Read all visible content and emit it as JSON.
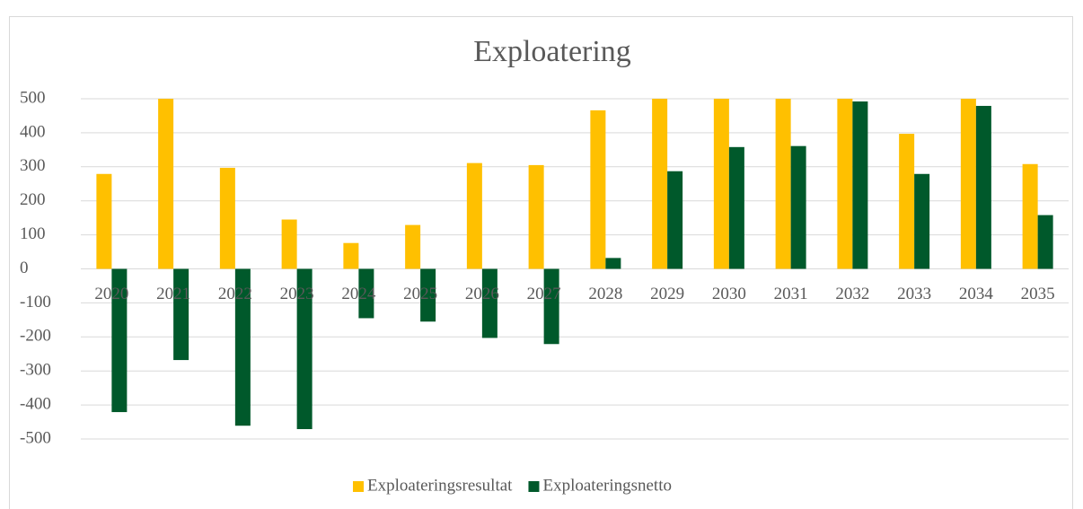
{
  "chart_data": {
    "type": "bar",
    "title": "Exploatering",
    "categories": [
      "2020",
      "2021",
      "2022",
      "2023",
      "2024",
      "2025",
      "2026",
      "2027",
      "2028",
      "2029",
      "2030",
      "2031",
      "2032",
      "2033",
      "2034",
      "2035"
    ],
    "series": [
      {
        "name": "Exploateringsresultat",
        "color": "#ffc000",
        "values": [
          279,
          500,
          297,
          145,
          76,
          129,
          311,
          305,
          466,
          500,
          500,
          500,
          500,
          397,
          500,
          308
        ]
      },
      {
        "name": "Exploateringsnetto",
        "color": "#00592b",
        "values": [
          -421,
          -268,
          -461,
          -471,
          -145,
          -155,
          -203,
          -221,
          32,
          287,
          358,
          361,
          492,
          279,
          479,
          158
        ]
      }
    ],
    "ylim": [
      -500,
      500
    ],
    "yticks": [
      -500,
      -400,
      -300,
      -200,
      -100,
      0,
      100,
      200,
      300,
      400,
      500
    ],
    "grid": true,
    "legend": "bottom"
  }
}
